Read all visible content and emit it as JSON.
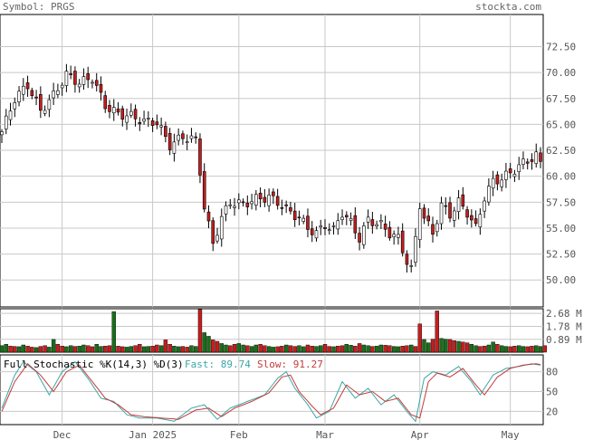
{
  "header": {
    "symbol": "Symbol: PRGS",
    "site": "stockta.com"
  },
  "indicator": {
    "label": "Full Stochastic %K(14,3) %D(3)",
    "fast_label": "Fast: 89.74",
    "slow_label": "Slow: 91.27",
    "fast_color": "#3aa6a6",
    "slow_color": "#c43a3a"
  },
  "colors": {
    "up_bar": "#1a6e1a",
    "down_bar": "#c41e1e",
    "candle_down": "#c41e1e",
    "candle_up": "#ffffff",
    "grid": "#c8c8c8"
  },
  "chart_data": [
    {
      "type": "candlestick",
      "yticks": [
        50.0,
        52.5,
        55.0,
        57.5,
        60.0,
        62.5,
        65.0,
        67.5,
        70.0,
        72.5
      ],
      "ytick_labels": [
        "50.00",
        "52.50",
        "55.00",
        "57.50",
        "60.00",
        "62.50",
        "65.00",
        "67.50",
        "70.00",
        "72.50"
      ],
      "ylim": [
        47.4,
        75.6
      ],
      "x_labels": [
        {
          "label": "Dec",
          "index": 14
        },
        {
          "label": "Jan 2025",
          "index": 35
        },
        {
          "label": "Feb",
          "index": 55
        },
        {
          "label": "Mar",
          "index": 75
        },
        {
          "label": "Apr",
          "index": 97
        },
        {
          "label": "May",
          "index": 118
        }
      ],
      "keypoints": [
        [
          0,
          64.3
        ],
        [
          3,
          67.5
        ],
        [
          6,
          68.8
        ],
        [
          9,
          66.3
        ],
        [
          12,
          67.8
        ],
        [
          15,
          69.8
        ],
        [
          18,
          69.0
        ],
        [
          21,
          69.5
        ],
        [
          24,
          66.8
        ],
        [
          27,
          66.0
        ],
        [
          30,
          65.8
        ],
        [
          33,
          65.3
        ],
        [
          36,
          65.2
        ],
        [
          39,
          63.0
        ],
        [
          42,
          63.8
        ],
        [
          45,
          63.5
        ],
        [
          46,
          60.5
        ],
        [
          47,
          57.0
        ],
        [
          49,
          53.5
        ],
        [
          51,
          56.0
        ],
        [
          53,
          57.5
        ],
        [
          56,
          57.3
        ],
        [
          59,
          57.8
        ],
        [
          62,
          58.0
        ],
        [
          64,
          57.5
        ],
        [
          67,
          56.5
        ],
        [
          69,
          56.0
        ],
        [
          71,
          55.0
        ],
        [
          73,
          54.5
        ],
        [
          75,
          55.3
        ],
        [
          77,
          54.8
        ],
        [
          79,
          56.5
        ],
        [
          81,
          55.5
        ],
        [
          83,
          54.0
        ],
        [
          85,
          55.8
        ],
        [
          88,
          55.3
        ],
        [
          90,
          54.5
        ],
        [
          92,
          54.0
        ],
        [
          94,
          51.8
        ],
        [
          95,
          51.0
        ],
        [
          96,
          54.0
        ],
        [
          97,
          57.3
        ],
        [
          98,
          56.0
        ],
        [
          100,
          54.5
        ],
        [
          102,
          57.2
        ],
        [
          104,
          56.3
        ],
        [
          106,
          57.5
        ],
        [
          108,
          56.5
        ],
        [
          110,
          55.0
        ],
        [
          112,
          58.0
        ],
        [
          114,
          59.5
        ],
        [
          116,
          59.8
        ],
        [
          118,
          60.3
        ],
        [
          120,
          61.0
        ],
        [
          122,
          61.5
        ],
        [
          124,
          62.0
        ],
        [
          125,
          61.2
        ]
      ]
    },
    {
      "type": "bar",
      "title": "volume",
      "yticks": [
        0.89,
        1.78,
        2.68
      ],
      "ytick_labels": [
        "0.89 M",
        "1.78 M",
        "2.68 M"
      ],
      "ylim": [
        0,
        3.0
      ],
      "values": [
        0.45,
        0.55,
        0.42,
        0.4,
        0.38,
        0.5,
        0.42,
        0.35,
        0.32,
        0.4,
        0.45,
        0.35,
        0.88,
        0.55,
        0.42,
        0.38,
        0.45,
        0.4,
        0.42,
        0.5,
        0.45,
        0.38,
        0.55,
        0.4,
        0.42,
        0.45,
        2.8,
        0.42,
        0.38,
        0.35,
        0.4,
        0.45,
        0.55,
        0.38,
        0.4,
        0.42,
        0.5,
        0.45,
        0.85,
        0.55,
        0.42,
        0.38,
        0.4,
        0.35,
        0.45,
        0.4,
        2.95,
        1.35,
        1.1,
        0.85,
        0.75,
        0.6,
        0.5,
        0.45,
        0.55,
        0.6,
        0.5,
        0.45,
        0.4,
        0.5,
        0.55,
        0.45,
        0.4,
        0.35,
        0.38,
        0.42,
        0.5,
        0.45,
        0.4,
        0.45,
        0.38,
        0.5,
        0.42,
        0.4,
        0.45,
        0.55,
        0.4,
        0.38,
        0.42,
        0.45,
        0.55,
        0.48,
        0.42,
        0.6,
        0.5,
        0.45,
        0.4,
        0.42,
        0.5,
        0.48,
        0.45,
        0.4,
        0.38,
        0.42,
        0.45,
        0.5,
        0.4,
        1.95,
        0.88,
        0.65,
        0.9,
        2.85,
        0.95,
        0.9,
        0.88,
        0.8,
        0.75,
        0.7,
        0.65,
        0.55,
        0.45,
        0.4,
        0.42,
        0.5,
        0.7,
        0.55,
        0.45,
        0.4,
        0.38,
        0.42,
        0.45,
        0.4,
        0.38,
        0.42,
        0.45,
        0.4,
        0.45
      ]
    },
    {
      "type": "line",
      "title": "stochastic",
      "yticks": [
        20,
        50,
        80
      ],
      "ytick_labels": [
        "20",
        "50",
        "80"
      ],
      "ylim": [
        0,
        100
      ],
      "series": [
        {
          "name": "Fast",
          "keypoints": [
            [
              0,
              25
            ],
            [
              3,
              75
            ],
            [
              5,
              95
            ],
            [
              8,
              80
            ],
            [
              11,
              45
            ],
            [
              14,
              80
            ],
            [
              17,
              95
            ],
            [
              20,
              70
            ],
            [
              23,
              40
            ],
            [
              26,
              35
            ],
            [
              29,
              15
            ],
            [
              32,
              10
            ],
            [
              36,
              10
            ],
            [
              40,
              5
            ],
            [
              44,
              25
            ],
            [
              47,
              30
            ],
            [
              50,
              8
            ],
            [
              53,
              25
            ],
            [
              57,
              35
            ],
            [
              61,
              45
            ],
            [
              64,
              70
            ],
            [
              66,
              80
            ],
            [
              68,
              55
            ],
            [
              71,
              30
            ],
            [
              73,
              10
            ],
            [
              76,
              20
            ],
            [
              79,
              65
            ],
            [
              82,
              40
            ],
            [
              85,
              55
            ],
            [
              88,
              30
            ],
            [
              91,
              45
            ],
            [
              94,
              20
            ],
            [
              96,
              5
            ],
            [
              98,
              70
            ],
            [
              100,
              80
            ],
            [
              103,
              75
            ],
            [
              106,
              88
            ],
            [
              109,
              65
            ],
            [
              111,
              45
            ],
            [
              114,
              75
            ],
            [
              117,
              85
            ],
            [
              120,
              88
            ],
            [
              123,
              92
            ],
            [
              125,
              90
            ]
          ]
        },
        {
          "name": "Slow",
          "keypoints": [
            [
              0,
              20
            ],
            [
              3,
              65
            ],
            [
              6,
              92
            ],
            [
              9,
              75
            ],
            [
              12,
              50
            ],
            [
              15,
              80
            ],
            [
              18,
              90
            ],
            [
              21,
              65
            ],
            [
              24,
              40
            ],
            [
              27,
              30
            ],
            [
              30,
              15
            ],
            [
              33,
              12
            ],
            [
              37,
              10
            ],
            [
              41,
              8
            ],
            [
              45,
              22
            ],
            [
              48,
              25
            ],
            [
              51,
              12
            ],
            [
              54,
              25
            ],
            [
              58,
              35
            ],
            [
              62,
              48
            ],
            [
              65,
              72
            ],
            [
              67,
              75
            ],
            [
              69,
              50
            ],
            [
              72,
              28
            ],
            [
              74,
              15
            ],
            [
              77,
              25
            ],
            [
              80,
              60
            ],
            [
              83,
              45
            ],
            [
              86,
              50
            ],
            [
              89,
              35
            ],
            [
              92,
              40
            ],
            [
              95,
              15
            ],
            [
              97,
              10
            ],
            [
              99,
              65
            ],
            [
              101,
              78
            ],
            [
              104,
              72
            ],
            [
              107,
              85
            ],
            [
              110,
              60
            ],
            [
              112,
              45
            ],
            [
              115,
              72
            ],
            [
              118,
              85
            ],
            [
              121,
              90
            ],
            [
              124,
              92
            ],
            [
              125,
              91
            ]
          ]
        }
      ]
    }
  ]
}
